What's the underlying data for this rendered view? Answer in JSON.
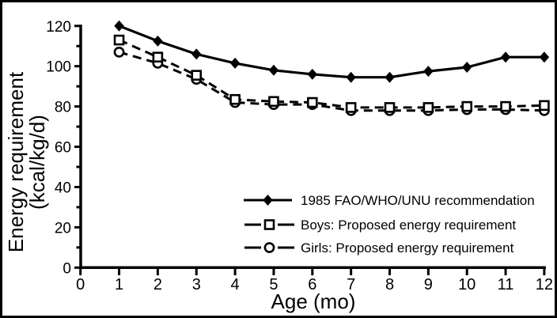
{
  "chart_data": {
    "type": "line",
    "title": "",
    "xlabel": "Age (mo)",
    "ylabel": "Energy requirement (kcal/kg/d)",
    "ylabel_line1": "Energy requirement",
    "ylabel_line2": "(kcal/kg/d)",
    "x": [
      1,
      2,
      3,
      4,
      5,
      6,
      7,
      8,
      9,
      10,
      11,
      12
    ],
    "xlim": [
      0,
      12
    ],
    "ylim": [
      0,
      120
    ],
    "x_ticks": [
      0,
      1,
      2,
      3,
      4,
      5,
      6,
      7,
      8,
      9,
      10,
      11,
      12
    ],
    "y_major_ticks": [
      0,
      20,
      40,
      60,
      80,
      100,
      120
    ],
    "y_minor_ticks": [
      10,
      30,
      50,
      70,
      90,
      110
    ],
    "grid": false,
    "legend_position": "inside-bottom-right",
    "colors": {
      "foreground": "#000000",
      "background": "#ffffff"
    },
    "series": [
      {
        "key": "fao",
        "name": "1985 FAO/WHO/UNU recommendation",
        "line_style": "solid",
        "marker": "filled-diamond",
        "color": "#000000",
        "values": [
          120,
          112.5,
          106,
          101.5,
          98,
          96,
          94.5,
          94.5,
          97.5,
          99.5,
          104.5,
          104.5
        ]
      },
      {
        "key": "boys",
        "name": "Boys: Proposed energy requirement",
        "line_style": "dashed",
        "marker": "open-square",
        "color": "#000000",
        "values": [
          113,
          104.5,
          95.5,
          83.5,
          82.5,
          82,
          79.5,
          79.5,
          79.5,
          80,
          80,
          80.5
        ]
      },
      {
        "key": "girls",
        "name": "Girls: Proposed energy requirement",
        "line_style": "dashed",
        "marker": "open-circle",
        "color": "#000000",
        "values": [
          107,
          101.5,
          93.5,
          82,
          81,
          81,
          78,
          78,
          78,
          78.5,
          78.5,
          78
        ]
      }
    ]
  }
}
